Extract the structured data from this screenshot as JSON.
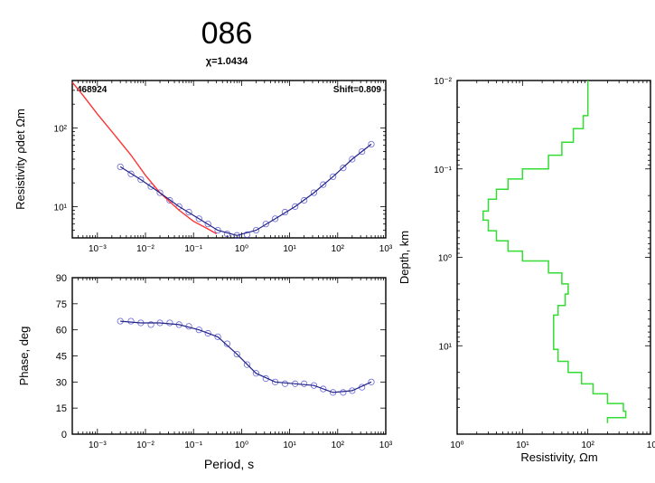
{
  "figure": {
    "title": "086",
    "subtitle": "χ=1.0434"
  },
  "chart_data": [
    {
      "id": "resistivity",
      "type": "scatter",
      "xscale": "log",
      "yscale": "log",
      "xlim": [
        0.0003,
        1000
      ],
      "ylim": [
        4,
        400
      ],
      "x_ticks": [
        "10⁻³",
        "10⁻²",
        "10⁻¹",
        "10⁰",
        "10¹",
        "10²",
        "10³"
      ],
      "y_ticks": [
        "10¹",
        "10²"
      ],
      "ylabel": "Resistivity ρdet Ωm",
      "annotations": {
        "left": "468924",
        "right": "Shift=0.809"
      },
      "series": [
        {
          "kind": "observed",
          "color": "#3333cc",
          "x": [
            0.003,
            0.005,
            0.008,
            0.013,
            0.02,
            0.032,
            0.05,
            0.08,
            0.13,
            0.2,
            0.32,
            0.5,
            0.8,
            1.3,
            2,
            3.2,
            5,
            8,
            13,
            20,
            32,
            50,
            80,
            130,
            200,
            320,
            500
          ],
          "y": [
            32,
            26,
            22,
            18,
            15,
            12,
            10,
            8.5,
            7,
            6,
            5,
            4.5,
            4.3,
            4.4,
            5,
            6,
            7,
            8.5,
            10,
            12,
            15,
            19,
            24,
            31,
            40,
            50,
            62
          ]
        },
        {
          "kind": "model",
          "color": "#ff3333",
          "x": [
            0.0003,
            0.0005,
            0.001,
            0.002,
            0.005,
            0.01,
            0.02,
            0.05,
            0.1,
            0.2,
            0.3
          ],
          "y": [
            380,
            260,
            150,
            90,
            45,
            25,
            15,
            9,
            6.5,
            5.2,
            4.5
          ]
        },
        {
          "kind": "fit",
          "color": "#222288",
          "x": [
            0.003,
            0.008,
            0.02,
            0.05,
            0.13,
            0.32,
            0.8,
            2,
            5,
            13,
            32,
            80,
            200,
            500
          ],
          "y": [
            32,
            22,
            15,
            10,
            7,
            5,
            4.3,
            5,
            7,
            10,
            15,
            24,
            40,
            62
          ]
        }
      ]
    },
    {
      "id": "phase",
      "type": "scatter",
      "xscale": "log",
      "xlim": [
        0.0003,
        1000
      ],
      "ylim": [
        0,
        90
      ],
      "x_ticks": [
        "10⁻³",
        "10⁻²",
        "10⁻¹",
        "10⁰",
        "10¹",
        "10²",
        "10³"
      ],
      "y_ticks": [
        0,
        15,
        30,
        45,
        60,
        75,
        90
      ],
      "xlabel": "Period, s",
      "ylabel": "Phase, deg",
      "series": [
        {
          "kind": "observed",
          "color": "#3333cc",
          "x": [
            0.003,
            0.005,
            0.008,
            0.013,
            0.02,
            0.032,
            0.05,
            0.08,
            0.13,
            0.2,
            0.32,
            0.5,
            0.8,
            1.3,
            2,
            3.2,
            5,
            8,
            13,
            20,
            32,
            50,
            80,
            130,
            200,
            320,
            500
          ],
          "y": [
            65,
            65,
            64,
            63,
            64,
            64,
            63,
            62,
            60,
            58,
            56,
            52,
            46,
            40,
            35,
            32,
            30,
            29,
            29,
            29,
            28,
            26,
            24,
            24,
            25,
            27,
            30
          ]
        },
        {
          "kind": "fit",
          "color": "#222288",
          "x": [
            0.003,
            0.008,
            0.02,
            0.05,
            0.13,
            0.32,
            0.8,
            2,
            5,
            13,
            32,
            80,
            200,
            500
          ],
          "y": [
            65,
            64,
            64,
            63,
            60,
            56,
            46,
            35,
            30,
            29,
            28,
            24,
            25,
            30
          ]
        }
      ]
    },
    {
      "id": "model",
      "type": "line",
      "xscale": "log",
      "yscale": "log",
      "xlim": [
        1,
        1000
      ],
      "ylim": [
        0.01,
        100
      ],
      "y_reversed": true,
      "x_ticks": [
        "10⁰",
        "10¹",
        "10²",
        "10³"
      ],
      "y_ticks": [
        "10⁻²",
        "10⁻¹",
        "10⁰",
        "10¹"
      ],
      "xlabel": "Resistivity, Ωm",
      "ylabel": "Depth, km",
      "series": [
        {
          "kind": "model",
          "color": "#33dd33",
          "resistivity": [
            100,
            100,
            85,
            60,
            40,
            25,
            10,
            6,
            4,
            3,
            2.5,
            3,
            4,
            6,
            10,
            25,
            40,
            50,
            45,
            35,
            30,
            30,
            30,
            35,
            50,
            80,
            120,
            200,
            350,
            380,
            200
          ],
          "depth_top": [
            0.01,
            0.018,
            0.025,
            0.035,
            0.05,
            0.07,
            0.1,
            0.13,
            0.17,
            0.22,
            0.3,
            0.38,
            0.5,
            0.65,
            0.85,
            1.1,
            1.5,
            2,
            2.6,
            3.5,
            4.5,
            6,
            8,
            11,
            15,
            20,
            27,
            35,
            45,
            55,
            65
          ],
          "depth_bottom": 75
        }
      ]
    }
  ]
}
